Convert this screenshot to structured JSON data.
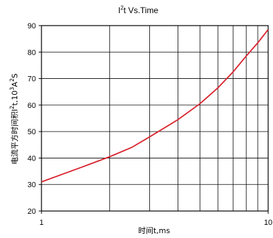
{
  "chart_data": {
    "type": "line",
    "title_base": "I",
    "title_sup": "2",
    "title_rest": "t  Vs.Time",
    "xlabel": "时间t,ms",
    "ylabel_prefix": "电流平方时间积I",
    "ylabel_sup1": "2",
    "ylabel_mid": "t,10",
    "ylabel_sup2": "3",
    "ylabel_a": "A",
    "ylabel_sup3": "2",
    "ylabel_end": "S",
    "x_scale": "log",
    "xlim": [
      1,
      10
    ],
    "ylim": [
      20,
      90
    ],
    "x_ticks": [
      1,
      10
    ],
    "x_tick_labels": [
      "1",
      "10"
    ],
    "y_ticks": [
      20,
      30,
      40,
      50,
      60,
      70,
      80,
      90
    ],
    "grid": true,
    "series": [
      {
        "color": "#d9232e",
        "x": [
          1,
          1.5,
          2,
          2.5,
          3,
          4,
          5,
          6,
          7,
          8,
          9,
          10
        ],
        "y": [
          31,
          36.5,
          40.5,
          44,
          48,
          54.5,
          60.5,
          66.5,
          72.5,
          78.5,
          83.5,
          88.5
        ]
      }
    ]
  }
}
